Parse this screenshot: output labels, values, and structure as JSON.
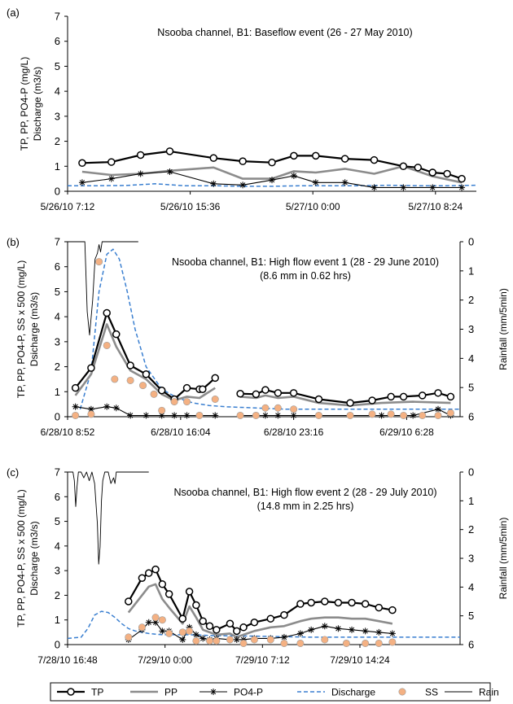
{
  "legend": {
    "items": [
      {
        "key": "tp",
        "label": "TP"
      },
      {
        "key": "pp",
        "label": "PP"
      },
      {
        "key": "po4",
        "label": "PO4-P"
      },
      {
        "key": "discharge",
        "label": "Discharge"
      },
      {
        "key": "ss",
        "label": "SS"
      },
      {
        "key": "rain",
        "label": "Rain"
      }
    ]
  },
  "chart_data": [
    {
      "type": "line",
      "panel_label": "(a)",
      "title": "Nsooba channel, B1: Baseflow event (26 - 27 May 2010)",
      "subtitle": "",
      "ylabel_lines": [
        "TP, PP, PO4-P  (mg/L)",
        "Discharge (m3/s)"
      ],
      "ylim": [
        0,
        7
      ],
      "yticks": [
        "0",
        "1",
        "2",
        "3",
        "4",
        "5",
        "6",
        "7"
      ],
      "xlim": [
        0,
        28
      ],
      "xtick_pos": [
        0,
        8.4,
        16.8,
        25.2
      ],
      "xticks": [
        "5/26/10 7:12",
        "5/26/10 15:36",
        "5/27/10 0:00",
        "5/27/10 8:24"
      ],
      "series": [
        {
          "key": "tp",
          "x": [
            1,
            3,
            5,
            7,
            10,
            12,
            14,
            15.5,
            17,
            19,
            21,
            23,
            24,
            25
          ],
          "y": [
            1.13,
            1.17,
            1.45,
            1.6,
            1.33,
            1.2,
            1.15,
            1.42,
            1.42,
            1.3,
            1.25,
            1.0,
            0.95,
            0.75
          ]
        },
        {
          "key": "tp2",
          "x": [
            25,
            26,
            27
          ],
          "y": [
            0.75,
            0.7,
            0.5
          ]
        },
        {
          "key": "pp",
          "x": [
            1,
            3,
            5,
            7,
            10,
            12,
            14,
            15.5,
            17,
            19,
            21,
            23,
            25,
            27
          ],
          "y": [
            0.78,
            0.65,
            0.7,
            0.82,
            0.95,
            0.5,
            0.5,
            0.8,
            0.75,
            0.9,
            0.7,
            1.0,
            0.6,
            0.35
          ]
        },
        {
          "key": "po4",
          "x": [
            1,
            3,
            5,
            7,
            10,
            12,
            14,
            15.5,
            17,
            19,
            21,
            23,
            25,
            27
          ],
          "y": [
            0.35,
            0.5,
            0.7,
            0.78,
            0.3,
            0.25,
            0.45,
            0.62,
            0.35,
            0.35,
            0.15,
            0.15,
            0.15,
            0.15
          ]
        },
        {
          "key": "discharge",
          "x": [
            0,
            2,
            4,
            6,
            8,
            10,
            12,
            14,
            16,
            18,
            20,
            22,
            24,
            26,
            28
          ],
          "y": [
            0.22,
            0.22,
            0.23,
            0.3,
            0.22,
            0.22,
            0.2,
            0.2,
            0.22,
            0.22,
            0.22,
            0.24,
            0.22,
            0.22,
            0.24
          ]
        }
      ]
    },
    {
      "type": "line",
      "panel_label": "(b)",
      "title": "Nsooba channel, B1: High flow event 1 (28 - 29 June 2010)",
      "subtitle": "(8.6 mm in 0.62 hrs)",
      "ylabel_lines": [
        "TP, PP, PO4-P, SS x 500 (mg/L)",
        "Dsicharge (m3/s)"
      ],
      "y2label": "Rainfall (mm/5min)",
      "ylim": [
        0,
        7
      ],
      "y2lim": [
        0,
        6
      ],
      "yticks": [
        "0",
        "1",
        "2",
        "3",
        "4",
        "5",
        "6",
        "7"
      ],
      "y2ticks": [
        "0",
        "1",
        "2",
        "3",
        "4",
        "5",
        "6"
      ],
      "xlim": [
        0,
        25
      ],
      "xtick_pos": [
        0,
        7.2,
        14.4,
        21.6
      ],
      "xticks": [
        "6/28/10 8:52",
        "6/28/10 16:04",
        "6/28/10 23:16",
        "6/29/10 6:28"
      ],
      "series": [
        {
          "key": "tp",
          "x": [
            0.5,
            1.5,
            2.5,
            3.1,
            4,
            5,
            6,
            6.8,
            7.6,
            8.4
          ],
          "y": [
            1.15,
            1.95,
            4.15,
            3.3,
            2.05,
            1.7,
            1.05,
            0.7,
            1.15,
            1.1
          ]
        },
        {
          "key": "tp2",
          "x": [
            8.6,
            9.4
          ],
          "y": [
            1.1,
            1.55
          ]
        },
        {
          "key": "tp3",
          "x": [
            11,
            12,
            12.6,
            13.4,
            14.4,
            16,
            18,
            19.4,
            20.6,
            21.4,
            22.6,
            23.6,
            24.4
          ],
          "y": [
            0.92,
            0.9,
            1.07,
            0.95,
            0.95,
            0.7,
            0.55,
            0.65,
            0.8,
            0.8,
            0.85,
            0.95,
            0.8
          ]
        },
        {
          "key": "pp",
          "x": [
            0.5,
            1.5,
            2.5,
            3.1,
            4,
            5,
            6,
            6.8,
            7.6,
            8.4,
            9.4
          ],
          "y": [
            0.85,
            1.7,
            3.7,
            2.8,
            1.85,
            1.5,
            0.9,
            0.65,
            0.8,
            0.75,
            1.15
          ]
        },
        {
          "key": "pp2",
          "x": [
            11,
            12,
            12.6,
            13.4,
            14.4,
            16,
            18,
            20,
            22,
            24.4
          ],
          "y": [
            0.8,
            0.75,
            0.85,
            0.75,
            0.8,
            0.55,
            0.45,
            0.55,
            0.6,
            0.55
          ]
        },
        {
          "key": "po4",
          "x": [
            0.5,
            1.5,
            2.5,
            3.1,
            4,
            5,
            6,
            6.8,
            7.6,
            8.4,
            9.4
          ],
          "y": [
            0.4,
            0.3,
            0.4,
            0.35,
            0.05,
            0.05,
            0.05,
            0.05,
            0.05,
            0.05,
            0.05
          ]
        },
        {
          "key": "po4_2",
          "x": [
            11,
            12,
            12.6,
            13.4,
            14.4,
            16,
            18,
            20,
            22,
            23.6,
            24.4
          ],
          "y": [
            0.05,
            0.05,
            0.05,
            0.05,
            0.05,
            0.05,
            0.05,
            0.05,
            0.05,
            0.3,
            0.05
          ]
        },
        {
          "key": "discharge",
          "x": [
            0.8,
            1.5,
            2.0,
            2.5,
            2.9,
            3.3,
            3.8,
            4.3,
            5.0,
            6.0,
            7.0,
            8.0,
            9.0,
            10.0,
            12.0,
            14.0,
            17.0,
            20.0,
            23.0,
            25.0
          ],
          "y": [
            0.3,
            1.8,
            5.0,
            6.5,
            6.7,
            6.3,
            5.0,
            3.5,
            2.0,
            1.1,
            0.75,
            0.55,
            0.45,
            0.4,
            0.35,
            0.3,
            0.3,
            0.3,
            0.3,
            0.3
          ]
        },
        {
          "key": "ss",
          "x": [
            0.5,
            1.5,
            2.0,
            2.5,
            3.0,
            4.0,
            4.8,
            5.5,
            6.0,
            6.8,
            7.6,
            8.4,
            9.4,
            11,
            12,
            12.6,
            13.4,
            14.4,
            16,
            18,
            19.4,
            20.6,
            21.4,
            22.6,
            23.6,
            24.4
          ],
          "y": [
            0.05,
            0.1,
            6.2,
            2.85,
            1.5,
            1.45,
            1.25,
            0.9,
            0.25,
            0.6,
            0.6,
            0.05,
            0.7,
            0.05,
            0.05,
            0.35,
            0.35,
            0.3,
            0.05,
            0.05,
            0.1,
            0.1,
            0.05,
            0.05,
            0.05,
            0.15
          ]
        },
        {
          "key": "rain",
          "x": [
            0,
            1.0,
            1.1,
            1.25,
            1.4,
            1.6,
            1.75,
            1.9,
            2.0,
            2.1,
            2.2,
            2.5,
            4.4,
            4.5
          ],
          "y": [
            0,
            0,
            0,
            2.4,
            3.2,
            2.0,
            0.6,
            0.4,
            0.1,
            0.35,
            0,
            0,
            0,
            0
          ]
        }
      ]
    },
    {
      "type": "line",
      "panel_label": "(c)",
      "title": "Nsooba channel, B1: High flow event 2 (28 - 29 July 2010)",
      "subtitle": "(14.8 mm in 2.25 hrs)",
      "ylabel_lines": [
        "TP, PP, PO4-P, SS x 500 (mg/L)",
        "Discharge (m3/s)"
      ],
      "y2label": "Rainfall (mm/5min)",
      "ylim": [
        0,
        7
      ],
      "y2lim": [
        0,
        6
      ],
      "yticks": [
        "0",
        "1",
        "2",
        "3",
        "4",
        "5",
        "6",
        "7"
      ],
      "y2ticks": [
        "0",
        "1",
        "2",
        "3",
        "4",
        "5",
        "6"
      ],
      "xlim": [
        0,
        29
      ],
      "xtick_pos": [
        0,
        7.2,
        14.4,
        21.6
      ],
      "xticks": [
        "7/28/10 16:48",
        "7/29/10 0:00",
        "7/29/10 7:12",
        "7/29/10 14:24"
      ],
      "series": [
        {
          "key": "tp",
          "x": [
            4.5,
            5.5,
            6.0,
            6.5,
            7.0,
            7.5,
            8.5,
            9.0,
            9.5,
            10.0,
            10.5,
            11.0,
            12.0,
            12.5,
            13.0,
            13.8,
            15.0,
            16.0,
            17.2,
            18.0,
            19.0,
            20.0,
            21.0,
            22.0,
            23.0,
            24.0
          ],
          "y": [
            1.75,
            2.7,
            2.9,
            3.05,
            2.45,
            2.05,
            1.05,
            2.15,
            1.6,
            0.95,
            0.75,
            0.6,
            0.85,
            0.55,
            0.7,
            0.9,
            1.05,
            1.2,
            1.65,
            1.7,
            1.75,
            1.7,
            1.7,
            1.65,
            1.5,
            1.4
          ]
        },
        {
          "key": "pp",
          "x": [
            4.5,
            5.5,
            6.0,
            6.5,
            7.0,
            7.5,
            8.5,
            9.0,
            9.5,
            10.0,
            10.5,
            11.0,
            12.0,
            12.5,
            13.0,
            13.8,
            15.0,
            16.0,
            17.2,
            18.0,
            19.0,
            20.0,
            21.0,
            22.0,
            23.0,
            24.0
          ],
          "y": [
            1.3,
            2.0,
            2.35,
            2.45,
            1.85,
            1.5,
            0.85,
            1.55,
            1.1,
            0.6,
            0.5,
            0.4,
            0.45,
            0.3,
            0.4,
            0.55,
            0.7,
            0.75,
            0.95,
            1.05,
            1.1,
            1.1,
            1.05,
            1.05,
            0.95,
            0.85
          ]
        },
        {
          "key": "po4",
          "x": [
            4.5,
            5.5,
            6.0,
            6.5,
            7.0,
            7.5,
            8.5,
            9.0,
            9.5,
            10.0,
            10.5,
            11.0,
            12.0,
            12.5,
            13.0,
            13.8,
            15.0,
            16.0,
            17.2,
            18.0,
            19.0,
            20.0,
            21.0,
            22.0,
            23.0,
            24.0
          ],
          "y": [
            0.2,
            0.6,
            0.9,
            0.9,
            0.55,
            0.55,
            0.2,
            0.7,
            0.4,
            0.25,
            0.2,
            0.25,
            0.2,
            0.2,
            0.2,
            0.25,
            0.25,
            0.3,
            0.45,
            0.6,
            0.75,
            0.65,
            0.6,
            0.55,
            0.5,
            0.45
          ]
        },
        {
          "key": "discharge",
          "x": [
            0,
            1.0,
            1.5,
            2.0,
            2.5,
            3.0,
            3.5,
            4.0,
            4.5,
            5.0,
            6.0,
            7.0,
            8.0,
            9.0,
            10.0,
            11.0,
            13.0,
            15.0,
            18.0,
            21.0,
            24.0,
            29.0
          ],
          "y": [
            0.25,
            0.3,
            0.65,
            1.2,
            1.35,
            1.3,
            1.1,
            0.85,
            0.65,
            0.55,
            0.45,
            0.4,
            0.4,
            0.4,
            0.38,
            0.36,
            0.35,
            0.33,
            0.3,
            0.3,
            0.3,
            0.3
          ]
        },
        {
          "key": "ss",
          "x": [
            4.5,
            5.5,
            6.5,
            7.0,
            7.5,
            8.5,
            9.0,
            9.5,
            10.5,
            11.0,
            12.0,
            13.0,
            13.8,
            15.0,
            16.0,
            17.2,
            19.0,
            20.6,
            22.0,
            23.0,
            24.0
          ],
          "y": [
            0.3,
            0.7,
            1.1,
            1.0,
            0.45,
            0.5,
            0.55,
            0.15,
            0.15,
            0.15,
            0.2,
            0.05,
            0.2,
            0.2,
            0.05,
            0.05,
            0.2,
            0.05,
            0.05,
            0.05,
            0.1
          ]
        },
        {
          "key": "rain",
          "x": [
            0,
            0.4,
            0.5,
            0.6,
            0.7,
            0.8,
            1.0,
            1.2,
            1.4,
            1.6,
            1.8,
            2.0,
            2.2,
            2.3,
            2.4,
            2.5,
            2.6,
            2.75,
            2.9,
            3.0,
            3.2,
            3.4,
            3.5,
            3.6,
            3.8,
            6.0
          ],
          "y": [
            0,
            0,
            0.3,
            1.2,
            0.5,
            0,
            0,
            0.2,
            0,
            0.3,
            0,
            0.4,
            1.8,
            3.2,
            2.6,
            1.0,
            0.3,
            0,
            0,
            0,
            0.4,
            0.2,
            0.4,
            0,
            0,
            0
          ]
        }
      ]
    }
  ]
}
